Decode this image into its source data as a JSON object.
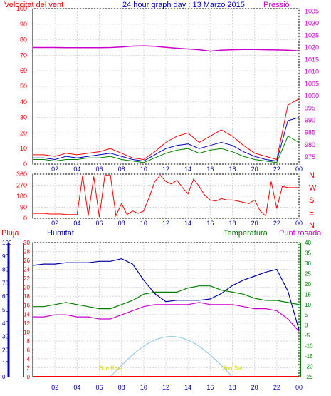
{
  "header": {
    "left_label": "Velocitat del vent",
    "title": "24 hour graph day : 13 Marzo 2015",
    "right_label": "Pressió"
  },
  "x_ticks": [
    "02",
    "04",
    "06",
    "08",
    "10",
    "12",
    "14",
    "16",
    "18",
    "20",
    "22",
    "00"
  ],
  "colors": {
    "wind": "#ff0000",
    "wind_avg": "#0000cc",
    "wind_gust_low": "#008000",
    "pressure": "#cc00cc",
    "humidity": "#0000aa",
    "temperature": "#008000",
    "dewpoint": "#cc00cc",
    "rain": "#ff0000",
    "sun": "#99ccee",
    "annotation": "#dddd00",
    "grid": "#d8d8d8",
    "axis_left": "#ff0000",
    "axis_right": "#cc00cc"
  },
  "chart_data": [
    {
      "type": "line",
      "name": "wind-pressure",
      "x": [
        0,
        1,
        2,
        3,
        4,
        5,
        6,
        7,
        8,
        9,
        10,
        11,
        12,
        13,
        14,
        15,
        16,
        17,
        18,
        19,
        20,
        21,
        22,
        23,
        24
      ],
      "left_axis": {
        "label": "Velocitat del vent",
        "ticks": [
          0,
          10,
          20,
          30,
          40,
          50,
          60,
          70,
          80,
          90,
          100
        ],
        "ylim": [
          0,
          100
        ]
      },
      "right_axis": {
        "label": "Pressió",
        "ticks": [
          975,
          980,
          985,
          990,
          995,
          1000,
          1005,
          1010,
          1015,
          1020,
          1025,
          1030,
          1035
        ],
        "ylim": [
          972,
          1036
        ]
      },
      "series": [
        {
          "key": "gust",
          "values": [
            6,
            6,
            5,
            7,
            6,
            7,
            8,
            10,
            7,
            4,
            3,
            8,
            14,
            18,
            20,
            14,
            18,
            22,
            18,
            12,
            7,
            5,
            3,
            38,
            42
          ]
        },
        {
          "key": "avg",
          "values": [
            4,
            4,
            3,
            5,
            4,
            5,
            6,
            7,
            5,
            3,
            2,
            6,
            10,
            12,
            13,
            10,
            12,
            14,
            12,
            8,
            5,
            3,
            2,
            28,
            30
          ]
        },
        {
          "key": "low",
          "values": [
            3,
            3,
            2,
            3,
            3,
            4,
            4,
            5,
            3,
            2,
            1,
            4,
            7,
            9,
            10,
            7,
            9,
            10,
            8,
            5,
            3,
            2,
            1,
            18,
            14
          ]
        },
        {
          "key": "pressure",
          "values": [
            1020.0,
            1020.0,
            1020.0,
            1019.9,
            1019.9,
            1019.9,
            1019.9,
            1020.0,
            1020.2,
            1020.6,
            1020.7,
            1020.5,
            1020.1,
            1019.7,
            1019.4,
            1019.1,
            1018.5,
            1018.9,
            1019.1,
            1019.2,
            1019.2,
            1019.1,
            1019.0,
            1018.9,
            1018.6
          ]
        }
      ]
    },
    {
      "type": "line",
      "name": "wind-direction",
      "x": [
        0,
        0.5,
        1,
        1.5,
        2,
        2.5,
        3,
        3.5,
        4,
        4.5,
        5,
        5.5,
        6,
        6.5,
        7,
        7.5,
        8,
        8.5,
        9,
        9.5,
        10,
        10.5,
        11,
        11.5,
        12,
        12.5,
        13,
        13.5,
        14,
        14.5,
        15,
        15.5,
        16,
        16.5,
        17,
        17.5,
        18,
        18.5,
        19,
        19.5,
        20,
        20.5,
        21,
        21.5,
        22,
        22.5,
        23,
        23.5,
        24
      ],
      "right_labels": [
        "N",
        "W",
        "S",
        "E",
        "N"
      ],
      "ticks": [
        360,
        270,
        180,
        90,
        0
      ],
      "ylim": [
        0,
        360
      ],
      "values": [
        40,
        40,
        40,
        35,
        35,
        35,
        30,
        30,
        30,
        350,
        20,
        340,
        10,
        350,
        350,
        20,
        120,
        30,
        60,
        40,
        60,
        170,
        300,
        350,
        300,
        280,
        310,
        250,
        200,
        320,
        260,
        190,
        150,
        140,
        160,
        150,
        150,
        140,
        130,
        120,
        150,
        60,
        20,
        300,
        80,
        260,
        250,
        250,
        250
      ]
    },
    {
      "type": "line",
      "name": "humidity-temperature-rain",
      "x": [
        0,
        1,
        2,
        3,
        4,
        5,
        6,
        7,
        8,
        9,
        10,
        11,
        12,
        13,
        14,
        15,
        16,
        17,
        18,
        19,
        20,
        21,
        22,
        23,
        24
      ],
      "axes": {
        "humidity": {
          "label": "Humitat",
          "ticks": [
            0,
            10,
            20,
            30,
            40,
            50,
            60,
            70,
            80,
            90,
            100
          ],
          "ylim": [
            0,
            100
          ]
        },
        "rain": {
          "label": "Pluja",
          "ticks": [
            0,
            2,
            4,
            6,
            8,
            10,
            12,
            14,
            16,
            18,
            20,
            22,
            24,
            26,
            28,
            30
          ],
          "ylim": [
            0,
            30
          ]
        },
        "temperature": {
          "label": "Temperatura",
          "ticks": [
            -25,
            -20,
            -15,
            -10,
            -5,
            0,
            5,
            10,
            15,
            20,
            25,
            30,
            35,
            40
          ],
          "ylim": [
            -25,
            40
          ]
        },
        "dewpoint": {
          "label": "Punt rosada"
        }
      },
      "series": [
        {
          "key": "humidity",
          "values": [
            83,
            84,
            84,
            85,
            85,
            85,
            86,
            86,
            88,
            84,
            72,
            62,
            56,
            57,
            57,
            57,
            58,
            62,
            68,
            72,
            75,
            78,
            80,
            64,
            35
          ]
        },
        {
          "key": "temperature",
          "values": [
            9,
            9,
            10,
            11,
            10,
            9,
            8,
            8,
            10,
            12,
            15,
            16,
            16,
            16,
            18,
            19,
            19,
            17,
            16,
            15,
            13,
            12,
            12,
            11,
            10
          ]
        },
        {
          "key": "dewpoint",
          "values": [
            4,
            4,
            5,
            5,
            4,
            4,
            3,
            3,
            5,
            7,
            9,
            10,
            10,
            10,
            10,
            11,
            10,
            10,
            10,
            9,
            8,
            8,
            7,
            3,
            -3
          ]
        },
        {
          "key": "rain",
          "values": [
            0,
            0,
            0,
            0,
            0,
            0,
            0,
            0,
            0,
            0,
            0,
            0,
            0,
            0,
            0,
            0,
            0,
            0,
            0,
            0,
            0,
            0,
            0,
            0,
            0
          ]
        }
      ],
      "sun_curve": {
        "rise_hour": 7,
        "set_hour": 18,
        "peak_hour": 12.5,
        "peak_value": 30
      },
      "annotations": [
        {
          "text": "Sun Rise",
          "hour": 7
        },
        {
          "text": "Sun Set",
          "hour": 18
        }
      ],
      "unprinted_annotations": [
        {
          "hour": 2.5,
          "rain_level": 10
        },
        {
          "hour": 12.5,
          "rain_level": 7
        }
      ]
    }
  ],
  "bottom_labels": {
    "rain": "Pluja",
    "humidity": "Humitat",
    "temperature": "Temperatura",
    "dewpoint": "Punt rosada"
  }
}
